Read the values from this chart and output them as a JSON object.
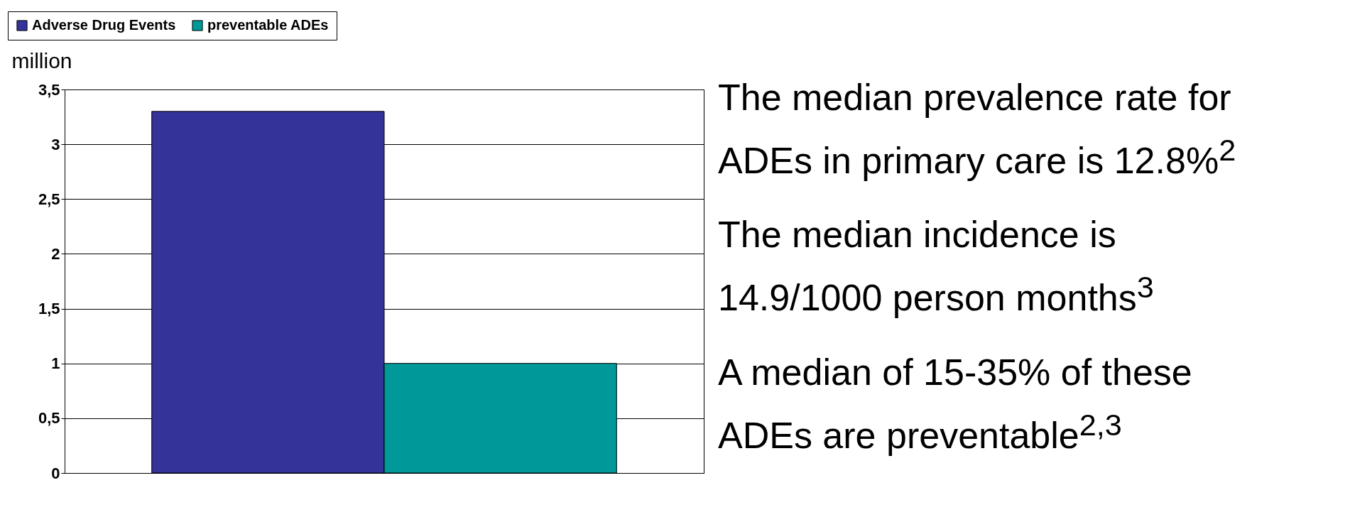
{
  "chart_data": {
    "type": "bar",
    "ylabel": "million",
    "categories": [
      null
    ],
    "series": [
      {
        "name": "Adverse Drug Events",
        "color": "#333399",
        "values": [
          3.3
        ]
      },
      {
        "name": "preventable ADEs",
        "color": "#009999",
        "values": [
          1.0
        ]
      }
    ],
    "ylim": [
      0,
      3.5
    ],
    "yticks": [
      0,
      {
        "value": 0.5,
        "label": "0,5"
      },
      1,
      {
        "value": 1.5,
        "label": "1,5"
      },
      2,
      {
        "value": 2.5,
        "label": "2,5"
      },
      3,
      {
        "value": 3.5,
        "label": "3,5"
      }
    ],
    "grid": "y",
    "legend": "top left",
    "annotations": [
      "The median prevalence rate for ADEs in primary care is 12.8%$^{2}$",
      "The median incidence is 14.9/1000 person months$^{3}$",
      "A median of 15-35% of these ADEs are preventable$^{2,3}$"
    ]
  }
}
